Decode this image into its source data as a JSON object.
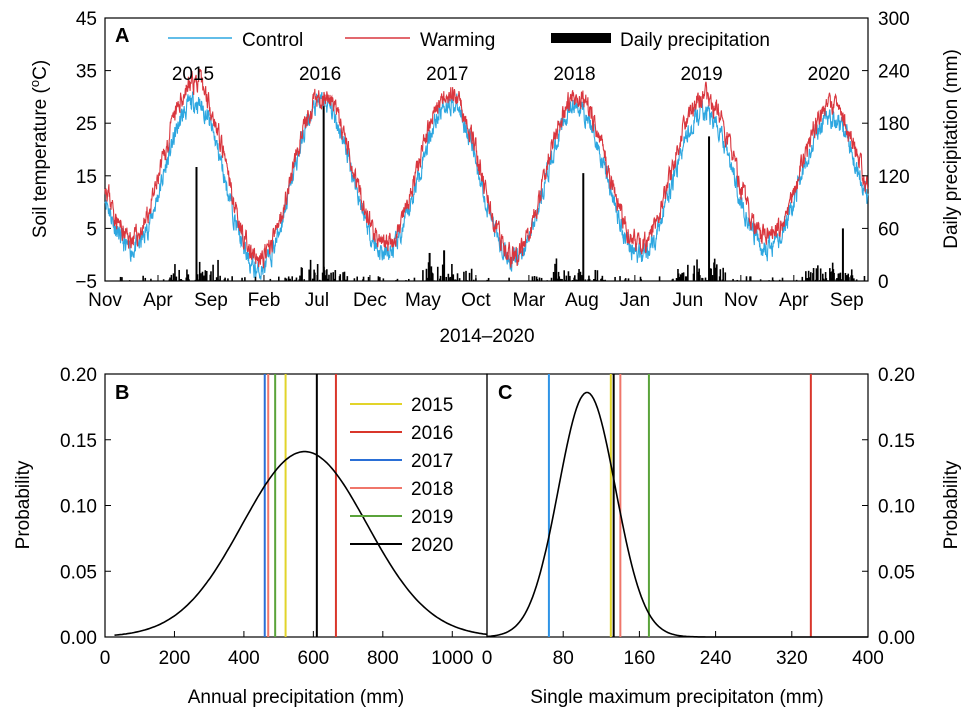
{
  "figure": {
    "xlabel_a": "2014–2020"
  },
  "chart_data": [
    {
      "id": "A",
      "panel_label": "A",
      "type": "line",
      "ylabel_left": "Soil temperature (°C)",
      "ylabel_right": "Daily precipitation (mm)",
      "xlabel": "2014–2020",
      "ylim_left": [
        -5,
        45
      ],
      "yticks_left": [
        "45",
        "35",
        "25",
        "15",
        "5",
        "−5"
      ],
      "ylim_right": [
        0,
        300
      ],
      "yticks_right": [
        "300",
        "240",
        "180",
        "120",
        "60",
        "0"
      ],
      "x_range_months": [
        "2014-11",
        "2020-10"
      ],
      "x_ticks": [
        "Nov",
        "Apr",
        "Sep",
        "Feb",
        "Jul",
        "Dec",
        "May",
        "Oct",
        "Mar",
        "Aug",
        "Jan",
        "Jun",
        "Nov",
        "Apr",
        "Sep"
      ],
      "year_labels": [
        "2015",
        "2016",
        "2017",
        "2018",
        "2019",
        "2020"
      ],
      "legend": [
        "Control",
        "Warming",
        "Daily precipitation"
      ],
      "series": [
        {
          "name": "Control",
          "color": "#2ea7e0",
          "peaks_by_year": [
            29,
            29,
            29,
            28,
            27,
            26
          ],
          "troughs_by_winter": [
            1,
            -3,
            0,
            -1,
            0,
            1
          ]
        },
        {
          "name": "Warming",
          "color": "#d9363e",
          "peaks_by_year": [
            33,
            30,
            31,
            30,
            30,
            28
          ],
          "troughs_by_winter": [
            3,
            -1,
            2,
            0,
            2,
            3
          ]
        },
        {
          "name": "Daily precipitation",
          "color": "#000000",
          "type": "bar",
          "large_events_mm": [
            {
              "date": "2015-07-20",
              "value": 130
            },
            {
              "date": "2016-07-20",
              "value": 205
            },
            {
              "date": "2017-05-20",
              "value": 32
            },
            {
              "date": "2017-07-01",
              "value": 35
            },
            {
              "date": "2018-08-05",
              "value": 123
            },
            {
              "date": "2019-08-01",
              "value": 165
            },
            {
              "date": "2020-08-20",
              "value": 60
            }
          ]
        }
      ]
    },
    {
      "id": "B",
      "panel_label": "B",
      "type": "line",
      "xlabel": "Annual  precipitation (mm)",
      "ylabel": "Probability",
      "xlim": [
        0,
        1100
      ],
      "xticks": [
        "0",
        "200",
        "400",
        "600",
        "800",
        "1000"
      ],
      "ylim": [
        0,
        0.2
      ],
      "yticks": [
        "0.00",
        "0.05",
        "0.10",
        "0.15",
        "0.20"
      ],
      "distribution": {
        "mean": 575,
        "sd": 180,
        "peak": 0.141
      },
      "year_lines": [
        {
          "year": "2015",
          "value": 520,
          "color": "#e2d42a"
        },
        {
          "year": "2016",
          "value": 665,
          "color": "#d9362b"
        },
        {
          "year": "2017",
          "value": 460,
          "color": "#2a6fd6"
        },
        {
          "year": "2018",
          "value": 470,
          "color": "#f0766a"
        },
        {
          "year": "2019",
          "value": 490,
          "color": "#5aa33a"
        },
        {
          "year": "2020",
          "value": 610,
          "color": "#000000"
        }
      ]
    },
    {
      "id": "C",
      "panel_label": "C",
      "type": "line",
      "xlabel": "Single maximum precipitaton (mm)",
      "ylabel": "Probability",
      "xlim": [
        0,
        400
      ],
      "xticks": [
        "0",
        "80",
        "160",
        "240",
        "320",
        "400"
      ],
      "ylim": [
        0,
        0.2
      ],
      "yticks": [
        "0.00",
        "0.05",
        "0.10",
        "0.15",
        "0.20"
      ],
      "distribution": {
        "mean": 105,
        "sd": 30,
        "peak": 0.186
      },
      "year_lines": [
        {
          "value": 130,
          "color": "#e2d42a"
        },
        {
          "value": 340,
          "color": "#d9362b"
        },
        {
          "value": 65,
          "color": "#2e93e6"
        },
        {
          "value": 140,
          "color": "#f0766a"
        },
        {
          "value": 170,
          "color": "#5aa33a"
        },
        {
          "value": 133,
          "color": "#000000"
        }
      ]
    }
  ]
}
